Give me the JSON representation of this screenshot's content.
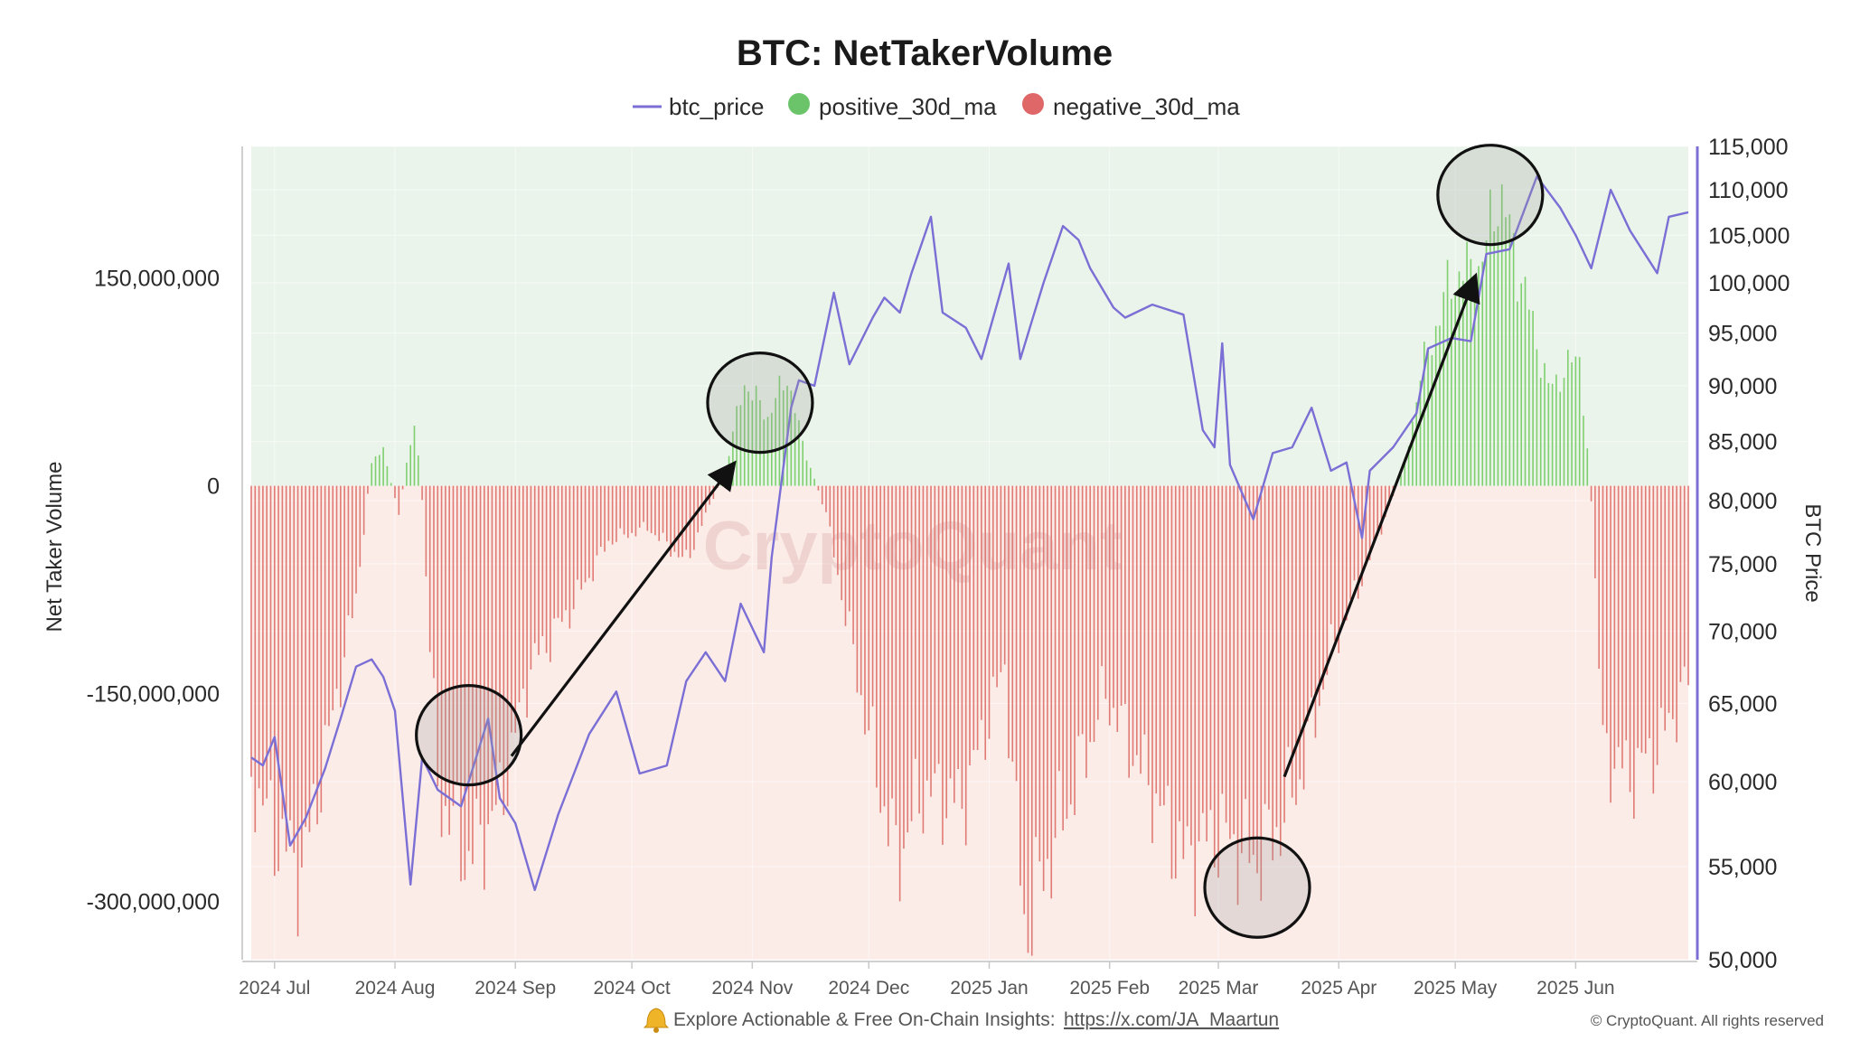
{
  "chart_data": {
    "type": "bar",
    "title": "BTC: NetTakerVolume",
    "legend": [
      {
        "name": "btc_price",
        "color": "#7b6fd6",
        "kind": "line"
      },
      {
        "name": "positive_30d_ma",
        "color": "#6cc46a",
        "kind": "dot"
      },
      {
        "name": "negative_30d_ma",
        "color": "#e06767",
        "kind": "dot"
      }
    ],
    "legend_position": "top-center",
    "ylabel_left": "Net Taker Volume",
    "ylabel_right": "BTC Price",
    "y_left_ticks": [
      "150,000,000",
      "0",
      "-150,000,000",
      "-300,000,000"
    ],
    "y_left_tick_values": [
      150000000,
      0,
      -150000000,
      -300000000
    ],
    "y_left_range": [
      -342000000,
      245000000
    ],
    "y_right_ticks": [
      "115,000",
      "110,000",
      "105,000",
      "100,000",
      "95,000",
      "90,000",
      "85,000",
      "80,000",
      "75,000",
      "70,000",
      "65,000",
      "60,000",
      "55,000",
      "50,000"
    ],
    "y_right_tick_values": [
      115000,
      110000,
      105000,
      100000,
      95000,
      90000,
      85000,
      80000,
      75000,
      70000,
      65000,
      60000,
      55000,
      50000
    ],
    "y_right_scale": "log",
    "y_right_range": [
      50000,
      115000
    ],
    "x_range": [
      "2024-06-25",
      "2025-06-30"
    ],
    "x_ticks": [
      {
        "date": "2024-07-01",
        "label": "2024 Jul"
      },
      {
        "date": "2024-08-01",
        "label": "2024 Aug"
      },
      {
        "date": "2024-09-01",
        "label": "2024 Sep"
      },
      {
        "date": "2024-10-01",
        "label": "2024 Oct"
      },
      {
        "date": "2024-11-01",
        "label": "2024 Nov"
      },
      {
        "date": "2024-12-01",
        "label": "2024 Dec"
      },
      {
        "date": "2025-01-01",
        "label": "2025 Jan"
      },
      {
        "date": "2025-02-01",
        "label": "2025 Feb"
      },
      {
        "date": "2025-03-01",
        "label": "2025 Mar"
      },
      {
        "date": "2025-04-01",
        "label": "2025 Apr"
      },
      {
        "date": "2025-05-01",
        "label": "2025 May"
      },
      {
        "date": "2025-06-01",
        "label": "2025 Jun"
      }
    ],
    "grid": true,
    "background_positive": "#eaf4ea",
    "background_negative": "#fbece8",
    "net_taker_volume_30d_ma": [
      {
        "date": "2024-06-25",
        "value": -210000000
      },
      {
        "date": "2024-07-01",
        "value": -250000000
      },
      {
        "date": "2024-07-08",
        "value": -280000000
      },
      {
        "date": "2024-07-15",
        "value": -180000000
      },
      {
        "date": "2024-07-22",
        "value": -80000000
      },
      {
        "date": "2024-07-26",
        "value": 18000000
      },
      {
        "date": "2024-07-29",
        "value": 25000000
      },
      {
        "date": "2024-08-02",
        "value": -20000000
      },
      {
        "date": "2024-08-06",
        "value": 50000000
      },
      {
        "date": "2024-08-08",
        "value": -10000000
      },
      {
        "date": "2024-08-12",
        "value": -220000000
      },
      {
        "date": "2024-08-20",
        "value": -270000000
      },
      {
        "date": "2024-08-28",
        "value": -230000000
      },
      {
        "date": "2024-09-05",
        "value": -130000000
      },
      {
        "date": "2024-09-15",
        "value": -90000000
      },
      {
        "date": "2024-09-25",
        "value": -40000000
      },
      {
        "date": "2024-10-05",
        "value": -30000000
      },
      {
        "date": "2024-10-15",
        "value": -55000000
      },
      {
        "date": "2024-10-25",
        "value": 12000000
      },
      {
        "date": "2024-10-30",
        "value": 75000000
      },
      {
        "date": "2024-11-05",
        "value": 50000000
      },
      {
        "date": "2024-11-10",
        "value": 80000000
      },
      {
        "date": "2024-11-14",
        "value": 30000000
      },
      {
        "date": "2024-11-20",
        "value": -20000000
      },
      {
        "date": "2024-12-01",
        "value": -180000000
      },
      {
        "date": "2024-12-08",
        "value": -270000000
      },
      {
        "date": "2024-12-15",
        "value": -220000000
      },
      {
        "date": "2024-12-25",
        "value": -230000000
      },
      {
        "date": "2025-01-05",
        "value": -130000000
      },
      {
        "date": "2025-01-10",
        "value": -320000000
      },
      {
        "date": "2025-01-20",
        "value": -240000000
      },
      {
        "date": "2025-01-31",
        "value": -150000000
      },
      {
        "date": "2025-02-10",
        "value": -210000000
      },
      {
        "date": "2025-02-20",
        "value": -270000000
      },
      {
        "date": "2025-03-01",
        "value": -250000000
      },
      {
        "date": "2025-03-10",
        "value": -270000000
      },
      {
        "date": "2025-03-15",
        "value": -255000000
      },
      {
        "date": "2025-03-22",
        "value": -210000000
      },
      {
        "date": "2025-03-30",
        "value": -120000000
      },
      {
        "date": "2025-04-08",
        "value": -60000000
      },
      {
        "date": "2025-04-18",
        "value": 15000000
      },
      {
        "date": "2025-04-22",
        "value": 80000000
      },
      {
        "date": "2025-04-30",
        "value": 150000000
      },
      {
        "date": "2025-05-08",
        "value": 160000000
      },
      {
        "date": "2025-05-12",
        "value": 215000000
      },
      {
        "date": "2025-05-18",
        "value": 150000000
      },
      {
        "date": "2025-05-25",
        "value": 70000000
      },
      {
        "date": "2025-06-02",
        "value": 95000000
      },
      {
        "date": "2025-06-05",
        "value": -10000000
      },
      {
        "date": "2025-06-08",
        "value": -190000000
      },
      {
        "date": "2025-06-15",
        "value": -210000000
      },
      {
        "date": "2025-06-22",
        "value": -190000000
      },
      {
        "date": "2025-06-30",
        "value": -140000000
      }
    ],
    "btc_price": [
      {
        "date": "2024-06-25",
        "value": 61500
      },
      {
        "date": "2024-06-28",
        "value": 61000
      },
      {
        "date": "2024-07-01",
        "value": 62800
      },
      {
        "date": "2024-07-05",
        "value": 56200
      },
      {
        "date": "2024-07-09",
        "value": 57800
      },
      {
        "date": "2024-07-14",
        "value": 60800
      },
      {
        "date": "2024-07-18",
        "value": 64000
      },
      {
        "date": "2024-07-22",
        "value": 67500
      },
      {
        "date": "2024-07-26",
        "value": 68000
      },
      {
        "date": "2024-07-29",
        "value": 66800
      },
      {
        "date": "2024-08-01",
        "value": 64500
      },
      {
        "date": "2024-08-05",
        "value": 54000
      },
      {
        "date": "2024-08-08",
        "value": 61500
      },
      {
        "date": "2024-08-12",
        "value": 59500
      },
      {
        "date": "2024-08-18",
        "value": 58500
      },
      {
        "date": "2024-08-25",
        "value": 64000
      },
      {
        "date": "2024-08-28",
        "value": 59000
      },
      {
        "date": "2024-09-01",
        "value": 57500
      },
      {
        "date": "2024-09-06",
        "value": 53700
      },
      {
        "date": "2024-09-12",
        "value": 58000
      },
      {
        "date": "2024-09-20",
        "value": 63000
      },
      {
        "date": "2024-09-27",
        "value": 65800
      },
      {
        "date": "2024-10-03",
        "value": 60500
      },
      {
        "date": "2024-10-10",
        "value": 61000
      },
      {
        "date": "2024-10-15",
        "value": 66500
      },
      {
        "date": "2024-10-20",
        "value": 68500
      },
      {
        "date": "2024-10-25",
        "value": 66500
      },
      {
        "date": "2024-10-29",
        "value": 72000
      },
      {
        "date": "2024-11-04",
        "value": 68500
      },
      {
        "date": "2024-11-06",
        "value": 75500
      },
      {
        "date": "2024-11-11",
        "value": 88000
      },
      {
        "date": "2024-11-13",
        "value": 90500
      },
      {
        "date": "2024-11-17",
        "value": 90000
      },
      {
        "date": "2024-11-22",
        "value": 99000
      },
      {
        "date": "2024-11-26",
        "value": 92000
      },
      {
        "date": "2024-12-02",
        "value": 96500
      },
      {
        "date": "2024-12-05",
        "value": 98500
      },
      {
        "date": "2024-12-09",
        "value": 97000
      },
      {
        "date": "2024-12-12",
        "value": 101000
      },
      {
        "date": "2024-12-17",
        "value": 107000
      },
      {
        "date": "2024-12-20",
        "value": 97000
      },
      {
        "date": "2024-12-26",
        "value": 95500
      },
      {
        "date": "2024-12-30",
        "value": 92500
      },
      {
        "date": "2025-01-06",
        "value": 102000
      },
      {
        "date": "2025-01-09",
        "value": 92500
      },
      {
        "date": "2025-01-15",
        "value": 100000
      },
      {
        "date": "2025-01-20",
        "value": 106000
      },
      {
        "date": "2025-01-24",
        "value": 104500
      },
      {
        "date": "2025-01-27",
        "value": 101500
      },
      {
        "date": "2025-02-02",
        "value": 97500
      },
      {
        "date": "2025-02-05",
        "value": 96500
      },
      {
        "date": "2025-02-12",
        "value": 97800
      },
      {
        "date": "2025-02-20",
        "value": 96800
      },
      {
        "date": "2025-02-25",
        "value": 86000
      },
      {
        "date": "2025-02-28",
        "value": 84500
      },
      {
        "date": "2025-03-02",
        "value": 94000
      },
      {
        "date": "2025-03-04",
        "value": 83000
      },
      {
        "date": "2025-03-10",
        "value": 78500
      },
      {
        "date": "2025-03-15",
        "value": 84000
      },
      {
        "date": "2025-03-20",
        "value": 84500
      },
      {
        "date": "2025-03-25",
        "value": 88000
      },
      {
        "date": "2025-03-30",
        "value": 82500
      },
      {
        "date": "2025-04-03",
        "value": 83200
      },
      {
        "date": "2025-04-07",
        "value": 77000
      },
      {
        "date": "2025-04-09",
        "value": 82500
      },
      {
        "date": "2025-04-15",
        "value": 84500
      },
      {
        "date": "2025-04-21",
        "value": 87500
      },
      {
        "date": "2025-04-24",
        "value": 93500
      },
      {
        "date": "2025-04-30",
        "value": 94500
      },
      {
        "date": "2025-05-05",
        "value": 94200
      },
      {
        "date": "2025-05-09",
        "value": 103000
      },
      {
        "date": "2025-05-15",
        "value": 103500
      },
      {
        "date": "2025-05-22",
        "value": 111500
      },
      {
        "date": "2025-05-28",
        "value": 108000
      },
      {
        "date": "2025-06-01",
        "value": 105000
      },
      {
        "date": "2025-06-05",
        "value": 101500
      },
      {
        "date": "2025-06-10",
        "value": 110000
      },
      {
        "date": "2025-06-15",
        "value": 105500
      },
      {
        "date": "2025-06-22",
        "value": 101000
      },
      {
        "date": "2025-06-25",
        "value": 107000
      },
      {
        "date": "2025-06-30",
        "value": 107500
      }
    ],
    "highlight_circles": [
      {
        "date": "2024-08-20",
        "value": -180000000
      },
      {
        "date": "2024-11-03",
        "value": 60000000
      },
      {
        "date": "2025-03-11",
        "value": -290000000
      },
      {
        "date": "2025-05-10",
        "value": 210000000
      }
    ],
    "arrows": [
      {
        "from_date": "2024-08-31",
        "from_value": -195000000,
        "to_date": "2024-10-27",
        "to_value": 15000000
      },
      {
        "from_date": "2025-03-18",
        "from_value": -210000000,
        "to_date": "2025-05-06",
        "to_value": 150000000
      }
    ],
    "watermark": "CryptoQuant"
  },
  "footer": {
    "bell_icon": "bell-icon",
    "text": "Explore Actionable & Free On-Chain Insights:",
    "link": "https://x.com/JA_Maartun",
    "copyright": "© CryptoQuant. All rights reserved"
  }
}
